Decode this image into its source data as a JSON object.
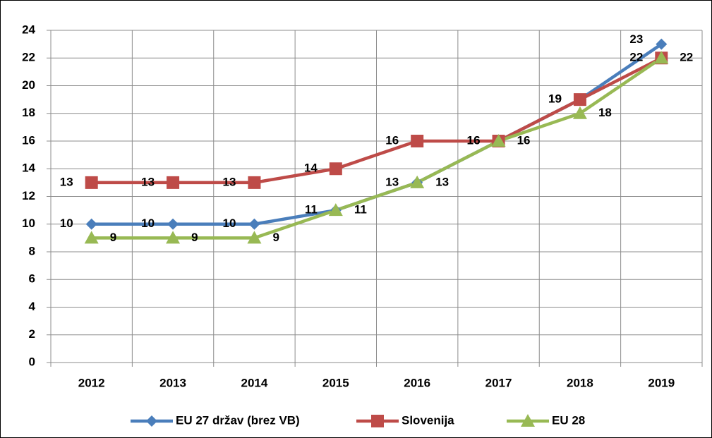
{
  "chart_data": {
    "type": "line",
    "categories": [
      "2012",
      "2013",
      "2014",
      "2015",
      "2016",
      "2017",
      "2018",
      "2019"
    ],
    "series": [
      {
        "name": "EU 27 držav (brez VB)",
        "color": "#4a7ebb",
        "marker": "diamond",
        "label_side": "left",
        "values": [
          10,
          10,
          10,
          11,
          13,
          16,
          19,
          23
        ]
      },
      {
        "name": "Slovenija",
        "color": "#be4b48",
        "marker": "square",
        "label_side": "left",
        "values": [
          13,
          13,
          13,
          14,
          16,
          16,
          19,
          22
        ]
      },
      {
        "name": "EU 28",
        "color": "#98b954",
        "marker": "triangle",
        "label_side": "right",
        "values": [
          9,
          9,
          9,
          11,
          13,
          16,
          18,
          22
        ]
      }
    ],
    "ylim": [
      0,
      24
    ],
    "yticks": [
      0,
      2,
      4,
      6,
      8,
      10,
      12,
      14,
      16,
      18,
      20,
      22,
      24
    ],
    "grid": true,
    "legend": "bottom"
  }
}
